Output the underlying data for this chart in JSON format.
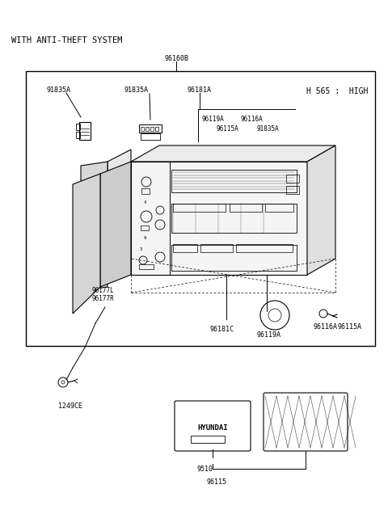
{
  "bg_color": "#ffffff",
  "tc": "#000000",
  "title": "WITH ANTI-THEFT SYSTEM",
  "subtitle": "H 565 :  HIGH",
  "lbl_96160B": "96160B",
  "lbl_91835A_1": "91835A",
  "lbl_91835A_2": "91835A",
  "lbl_96181A": "96181A",
  "lbl_96119A_t": "96119A",
  "lbl_96116A_t": "96116A",
  "lbl_96115A_t": "96115A",
  "lbl_91835A_3": "91835A",
  "lbl_96177L": "96177L",
  "lbl_96177R": "96177R",
  "lbl_96181C": "96181C",
  "lbl_96119A_b": "96119A",
  "lbl_96116A_b": "96116A",
  "lbl_96115A_b": "96115A",
  "lbl_1249CE": "1249CE",
  "lbl_9510": "9510",
  "lbl_96115": "96115",
  "lbl_HYUNDAI": "HYUNDAI",
  "fs_title": 7.5,
  "fs_label": 6.0,
  "fs_sub": 7.0
}
